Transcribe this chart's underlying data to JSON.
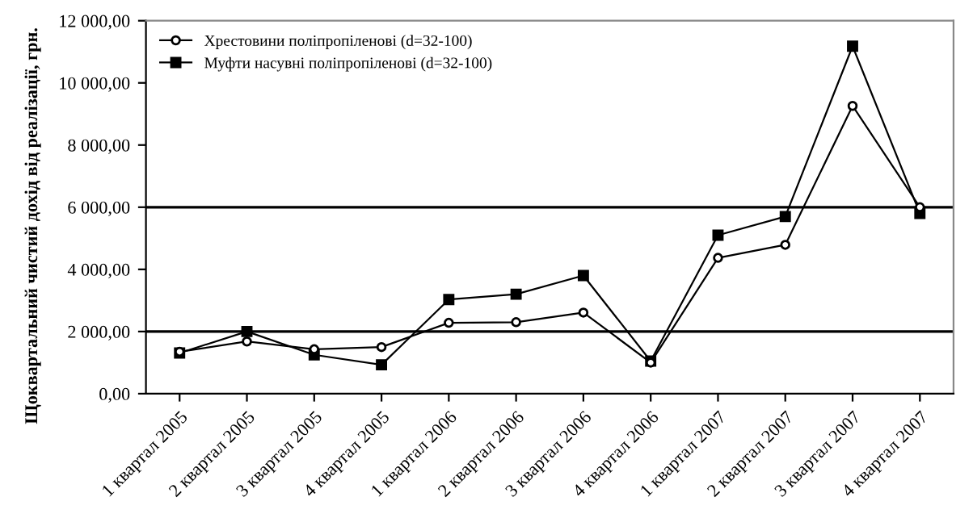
{
  "chart_data": {
    "type": "line",
    "ylabel": "Щоквартальний чистий дохід від реалізації, грн.",
    "categories": [
      "1 квартал 2005",
      "2 квартал 2005",
      "3 квартал 2005",
      "4 квартал 2005",
      "1 квартал 2006",
      "2 квартал 2006",
      "3 квартал 2006",
      "4 квартал 2006",
      "1 квартал 2007",
      "2 квартал 2007",
      "3 квартал 2007",
      "4 квартал 2007"
    ],
    "series": [
      {
        "name": "Хрестовини поліпропіленові (d=32-100)",
        "color": "#000000",
        "marker": "circle",
        "values": [
          1350,
          1680,
          1430,
          1500,
          2280,
          2300,
          2610,
          1000,
          4370,
          4790,
          9260,
          6000
        ]
      },
      {
        "name": "Муфти насувні поліпропіленові (d=32-100)",
        "color": "#000000",
        "marker": "square",
        "values": [
          1310,
          2000,
          1250,
          930,
          3030,
          3200,
          3800,
          1050,
          5100,
          5700,
          11180,
          5800
        ]
      }
    ],
    "ylim": [
      0,
      12000
    ],
    "yticks": [
      {
        "value": 0,
        "label": "0,00"
      },
      {
        "value": 2000,
        "label": "2 000,00"
      },
      {
        "value": 4000,
        "label": "4 000,00"
      },
      {
        "value": 6000,
        "label": "6 000,00"
      },
      {
        "value": 8000,
        "label": "8 000,00"
      },
      {
        "value": 10000,
        "label": "10 000,00"
      },
      {
        "value": 12000,
        "label": "12 000,00"
      }
    ],
    "ref_lines": [
      {
        "axis": "y",
        "value": 2000,
        "color": "#000000"
      },
      {
        "axis": "y",
        "value": 6000,
        "color": "#000000"
      }
    ],
    "grid": false,
    "legend": "top left"
  }
}
